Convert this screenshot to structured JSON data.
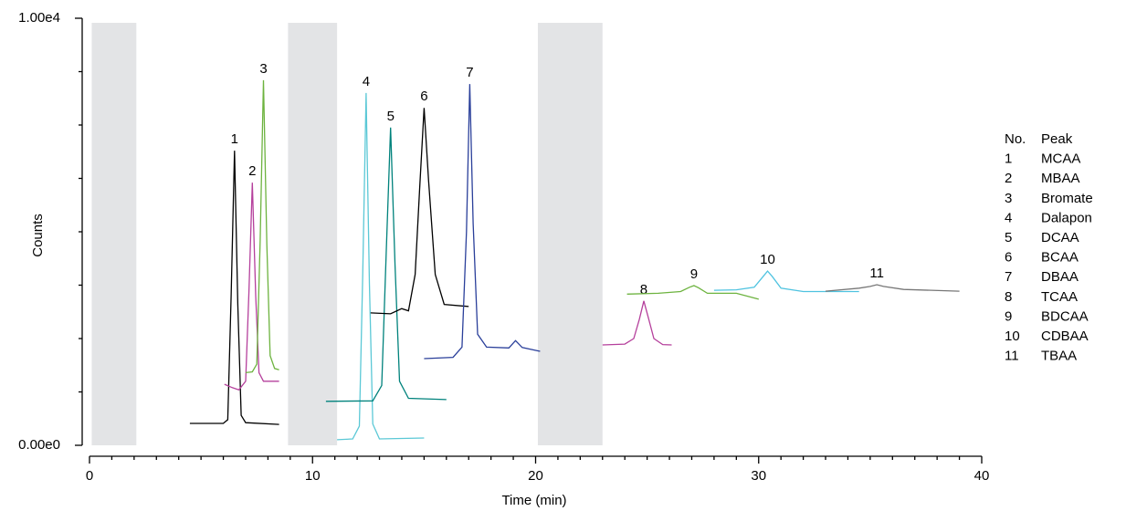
{
  "chart_data": {
    "type": "chromatogram",
    "xlabel": "Time (min)",
    "ylabel": "Counts",
    "xlim": [
      0,
      40
    ],
    "xticks": [
      0,
      10,
      20,
      30,
      40
    ],
    "xminorticks": [
      1,
      2,
      3,
      4,
      5,
      6,
      7,
      8,
      9,
      11,
      12,
      13,
      14,
      15,
      16,
      17,
      18,
      19,
      21,
      22,
      23,
      24,
      25,
      26,
      27,
      28,
      29,
      31,
      32,
      33,
      34,
      35,
      36,
      37,
      38,
      39
    ],
    "ylim": [
      0,
      10000
    ],
    "yticks": [
      {
        "value": 0,
        "label": "0.00e0"
      },
      {
        "value": 10000,
        "label": "1.00e4"
      }
    ],
    "yminorticks": [
      1250,
      2500,
      3750,
      5000,
      6250,
      7500,
      8750
    ],
    "shaded_regions": [
      [
        0.1,
        2.1
      ],
      [
        8.9,
        11.1
      ],
      [
        20.1,
        23.0
      ]
    ],
    "shade_color": "#e3e4e6",
    "legend_headers": [
      "No.",
      "Peak"
    ],
    "series": [
      {
        "label": "1",
        "name": "MCAA",
        "color": "#000000",
        "x": [
          4.5,
          6.0,
          6.2,
          6.35,
          6.5,
          6.65,
          6.8,
          7.0,
          8.5
        ],
        "values": [
          513,
          513,
          600,
          3500,
          6900,
          3300,
          700,
          530,
          490
        ]
      },
      {
        "label": "2",
        "name": "MBAA",
        "color": "#b5409c",
        "x": [
          6.05,
          6.4,
          6.7,
          7.0,
          7.15,
          7.3,
          7.45,
          7.6,
          7.8,
          8.5
        ],
        "values": [
          1430,
          1350,
          1300,
          1500,
          3600,
          6150,
          3500,
          1700,
          1500,
          1500
        ]
      },
      {
        "label": "3",
        "name": "Bromate",
        "color": "#6db33f",
        "x": [
          7.0,
          7.3,
          7.5,
          7.65,
          7.8,
          7.95,
          8.1,
          8.3,
          8.5
        ],
        "values": [
          1700,
          1720,
          1900,
          4800,
          8550,
          4700,
          2100,
          1800,
          1770
        ]
      },
      {
        "label": "4",
        "name": "Dalapon",
        "color": "#5bc8d6",
        "x": [
          11.1,
          11.8,
          12.1,
          12.25,
          12.4,
          12.55,
          12.7,
          13.0,
          15.0
        ],
        "values": [
          130,
          150,
          450,
          4000,
          8250,
          3800,
          500,
          150,
          170
        ]
      },
      {
        "label": "5",
        "name": "DCAA",
        "color": "#00827c",
        "x": [
          10.6,
          12.7,
          13.1,
          13.3,
          13.5,
          13.7,
          13.9,
          14.3,
          16.0
        ],
        "values": [
          1030,
          1040,
          1400,
          4500,
          7440,
          4200,
          1500,
          1100,
          1070
        ]
      },
      {
        "label": "6",
        "name": "BCAA",
        "color": "#000000",
        "x": [
          12.6,
          13.5,
          14.0,
          14.3,
          14.6,
          14.8,
          15.0,
          15.2,
          15.5,
          15.9,
          17.0
        ],
        "values": [
          3100,
          3080,
          3200,
          3150,
          4000,
          6000,
          7900,
          6200,
          4000,
          3300,
          3250
        ]
      },
      {
        "label": "7",
        "name": "DBAA",
        "color": "#2a3f9a",
        "x": [
          15.0,
          16.3,
          16.7,
          16.9,
          17.05,
          17.2,
          17.4,
          17.8,
          18.8,
          19.1,
          19.4,
          20.2
        ],
        "values": [
          2030,
          2060,
          2300,
          5000,
          8460,
          5200,
          2600,
          2300,
          2280,
          2450,
          2290,
          2200
        ]
      },
      {
        "label": "8",
        "name": "TCAA",
        "color": "#b5409c",
        "x": [
          23.0,
          24.0,
          24.4,
          24.65,
          24.85,
          25.05,
          25.3,
          25.7,
          26.1
        ],
        "values": [
          2350,
          2370,
          2500,
          2950,
          3380,
          3000,
          2500,
          2360,
          2350
        ]
      },
      {
        "label": "9",
        "name": "BDCAA",
        "color": "#6db33f",
        "x": [
          24.1,
          25.5,
          26.5,
          26.9,
          27.1,
          27.3,
          27.7,
          29.0,
          30.0
        ],
        "values": [
          3540,
          3560,
          3600,
          3700,
          3740,
          3690,
          3560,
          3560,
          3420
        ]
      },
      {
        "label": "10",
        "name": "CDBAA",
        "color": "#4fc3e0",
        "x": [
          28.0,
          29.0,
          29.8,
          30.2,
          30.4,
          30.6,
          31.0,
          32.0,
          34.5
        ],
        "values": [
          3630,
          3640,
          3700,
          3950,
          4080,
          3960,
          3680,
          3600,
          3600
        ]
      },
      {
        "label": "11",
        "name": "TBAA",
        "color": "#777777",
        "x": [
          33.0,
          34.5,
          35.0,
          35.3,
          35.6,
          36.5,
          39.0
        ],
        "values": [
          3610,
          3680,
          3720,
          3760,
          3720,
          3650,
          3610
        ]
      }
    ]
  }
}
